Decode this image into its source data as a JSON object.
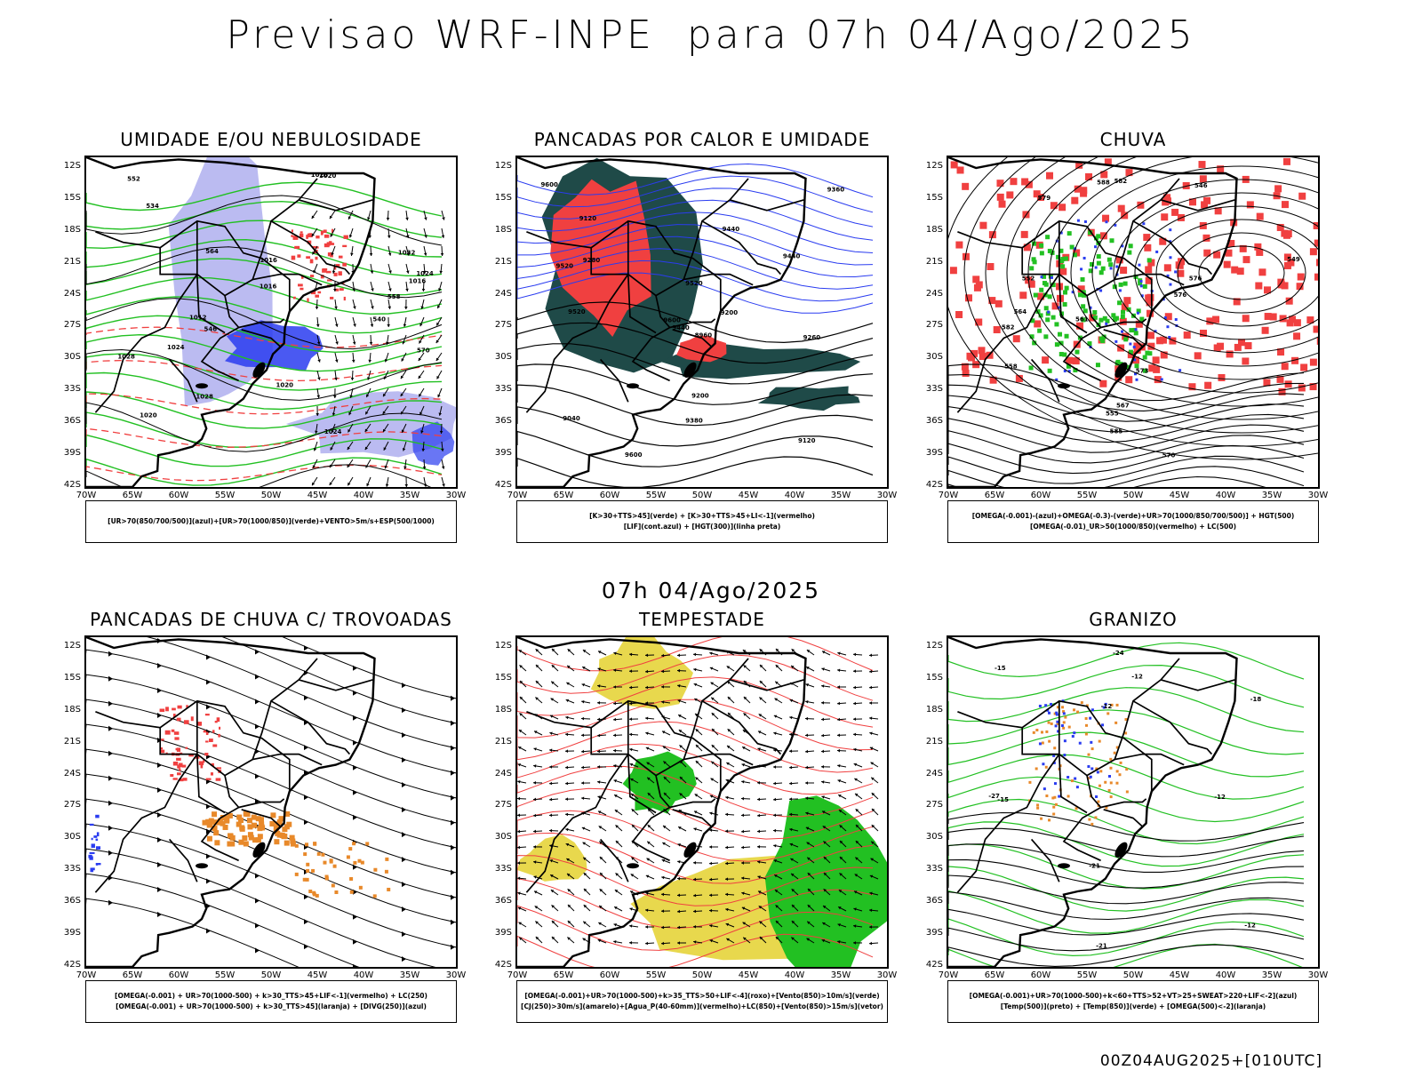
{
  "header": {
    "title": "Previsao WRF-INPE  para 07h 04/Ago/2025"
  },
  "mid": {
    "title": "07h 04/Ago/2025"
  },
  "footer": {
    "run": "00Z04AUG2025+[010UTC]"
  },
  "axes": {
    "lat": [
      "12S",
      "15S",
      "18S",
      "21S",
      "24S",
      "27S",
      "30S",
      "33S",
      "36S",
      "39S",
      "42S"
    ],
    "lon": [
      "70W",
      "65W",
      "60W",
      "55W",
      "50W",
      "45W",
      "40W",
      "35W",
      "30W"
    ]
  },
  "colors": {
    "green": "#22c022",
    "blue": "#2a3cf0",
    "red": "#f04040",
    "lavender": "#b4b4f0",
    "darkteal": "#1f4a48",
    "yellow": "#e6d43a",
    "orange": "#e8892a",
    "black": "#000000"
  },
  "panels": [
    {
      "id": "umidade",
      "title": "UMIDADE E/OU NEBULOSIDADE",
      "legend": [
        "[UR>70(850/700/500)](azul)+[UR>70(1000/850)](verde)+VENTO>5m/s+ESP(500/1000)"
      ],
      "labels": [
        "1016",
        "1016",
        "1020",
        "1020",
        "1024",
        "1028",
        "1032",
        "1024",
        "1028",
        "1016",
        "1012",
        "1020",
        "1024",
        "1028",
        "540",
        "546",
        "552",
        "558",
        "564",
        "570",
        "534"
      ]
    },
    {
      "id": "pancadas-calor",
      "title": "PANCADAS POR CALOR E UMIDADE",
      "legend": [
        "[K>30+TTS>45](verde) + [K>30+TTS>45+LI<-1](vermelho)",
        "[LIF](cont.azul) + [HGT(300)](linha preta)"
      ],
      "labels": [
        "9600",
        "9520",
        "9600",
        "9520",
        "9600",
        "9440",
        "9520",
        "9440",
        "9440",
        "9380",
        "9360",
        "9280",
        "9200",
        "9120",
        "9040",
        "8960",
        "9120",
        "9200",
        "9260"
      ]
    },
    {
      "id": "chuva",
      "title": "CHUVA",
      "legend": [
        "[OMEGA(-0.001)-(azul)+OMEGA(-0.3)-(verde)+UR>70(1000/850/700/500)] + HGT(500)",
        "[OMEGA(-0.01)_UR>50(1000/850)(vermelho) + LC(500)"
      ],
      "labels": [
        "582",
        "582",
        "579",
        "576",
        "576",
        "573",
        "570",
        "567",
        "564",
        "561",
        "558",
        "555",
        "552",
        "549",
        "546",
        "585",
        "588"
      ]
    },
    {
      "id": "trovoadas",
      "title": "PANCADAS DE CHUVA C/ TROVOADAS",
      "legend": [
        "[OMEGA(-0.001) + UR>70(1000-500) + k>30_TTS>45+LIF<-1](vermelho) + LC(250)",
        "[OMEGA(-0.001) + UR>70(1000-500) + k>30_TTS>45](laranja) + [DIVG(250)](azul)"
      ],
      "labels": []
    },
    {
      "id": "tempestade",
      "title": "TEMPESTADE",
      "legend": [
        "[OMEGA(-0.001)+UR>70(1000-500)+k>35_TTS>50+LIF<-4](roxo)+[Vento(850)>10m/s](verde)",
        "[CJ(250)>30m/s](amarelo)+[Agua_P(40-60mm)](vermelho)+LC(850)+[Vento(850)>15m/s](vetor)"
      ],
      "labels": []
    },
    {
      "id": "granizo",
      "title": "GRANIZO",
      "legend": [
        "[OMEGA(-0.001)+UR>70(1000-500)+k<60+TTS>52+VT>25+SWEAT>220+LIF<-2](azul)",
        "[Temp(500)](preto) + [Temp(850)](verde) + [OMEGA(500)<-2](laranja)"
      ],
      "labels": [
        "-12",
        "-12",
        "-12",
        "-15",
        "-12",
        "-18",
        "-15",
        "-21",
        "-24",
        "-27",
        "-21"
      ]
    }
  ]
}
